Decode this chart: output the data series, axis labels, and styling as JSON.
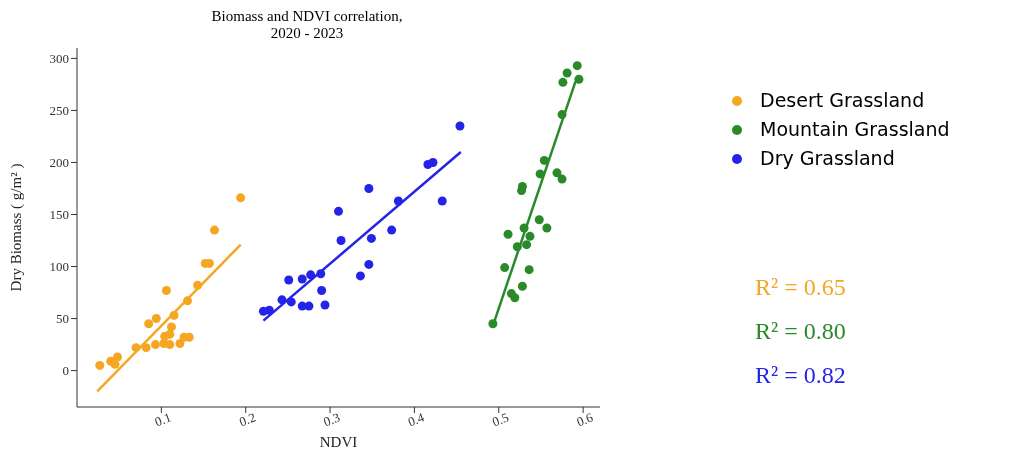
{
  "chart_data": {
    "type": "scatter",
    "title": "Biomass and NDVI correlation,\n2020 - 2023",
    "xlabel": "NDVI",
    "ylabel": "Dry Biomass ( g/m² )",
    "xlim": [
      0,
      0.62
    ],
    "ylim": [
      -35,
      310
    ],
    "xticks": [
      0.1,
      0.2,
      0.3,
      0.4,
      0.5,
      0.6
    ],
    "yticks": [
      0,
      50,
      100,
      150,
      200,
      250,
      300
    ],
    "legend": "top right",
    "marker": "circle",
    "annotations": [
      "R² = 0.65",
      "R² = 0.80",
      "R² = 0.82"
    ],
    "series": [
      {
        "name": "Desert Grassland",
        "color": "#f5a623",
        "x": [
          0.194,
          0.163,
          0.152,
          0.157,
          0.143,
          0.131,
          0.106,
          0.115,
          0.094,
          0.085,
          0.112,
          0.104,
          0.11,
          0.127,
          0.133,
          0.122,
          0.11,
          0.103,
          0.093,
          0.082,
          0.07,
          0.048,
          0.04,
          0.045,
          0.027
        ],
        "values": [
          166,
          135,
          103,
          103,
          82,
          67,
          77,
          53,
          50,
          45,
          42,
          33,
          35,
          32,
          32,
          26,
          25,
          26,
          25,
          22,
          22,
          13,
          9,
          6,
          5
        ]
      },
      {
        "name": "Mountain Grassland",
        "color": "#2a8a2a",
        "x": [
          0.593,
          0.581,
          0.576,
          0.595,
          0.575,
          0.554,
          0.549,
          0.569,
          0.575,
          0.528,
          0.527,
          0.548,
          0.557,
          0.53,
          0.537,
          0.511,
          0.522,
          0.533,
          0.507,
          0.536,
          0.528,
          0.515,
          0.519,
          0.493
        ],
        "values": [
          293,
          286,
          277,
          280,
          246,
          202,
          189,
          190,
          184,
          177,
          173,
          145,
          137,
          137,
          129,
          131,
          119,
          121,
          99,
          97,
          81,
          74,
          70,
          45
        ]
      },
      {
        "name": "Dry Grassland",
        "color": "#2424e8",
        "x": [
          0.454,
          0.422,
          0.416,
          0.346,
          0.381,
          0.433,
          0.31,
          0.373,
          0.349,
          0.313,
          0.346,
          0.336,
          0.289,
          0.277,
          0.267,
          0.251,
          0.29,
          0.243,
          0.254,
          0.267,
          0.275,
          0.294,
          0.228,
          0.221
        ],
        "values": [
          235,
          200,
          198,
          175,
          163,
          163,
          153,
          135,
          127,
          125,
          102,
          91,
          93,
          92,
          88,
          87,
          77,
          68,
          66,
          62,
          62,
          63,
          58,
          57
        ]
      },
      {
        "type": "line",
        "marker": "none",
        "color": "#f5a623",
        "x": [
          0.024,
          0.194
        ],
        "values": [
          -20,
          121
        ]
      },
      {
        "type": "line",
        "marker": "none",
        "color": "#2a8a2a",
        "x": [
          0.493,
          0.591
        ],
        "values": [
          43,
          278
        ]
      },
      {
        "type": "line",
        "marker": "none",
        "color": "#2424e8",
        "x": [
          0.221,
          0.455
        ],
        "values": [
          48,
          210
        ]
      }
    ]
  }
}
